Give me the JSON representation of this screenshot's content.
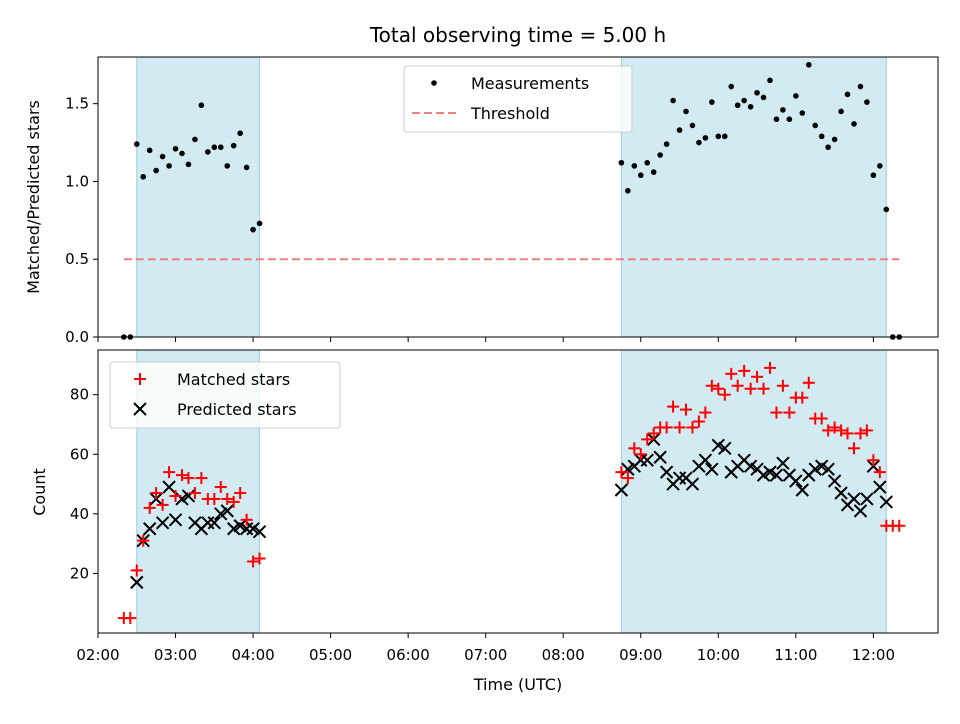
{
  "chart_data": [
    {
      "type": "scatter",
      "title": "Total observing time = 5.00 h",
      "xlabel": "",
      "ylabel": "Matched/Predicted stars",
      "xlim": [
        "02:00",
        "12:50"
      ],
      "ylim": [
        0,
        1.8
      ],
      "yticks": [
        "0.0",
        "0.5",
        "1.0",
        "1.5"
      ],
      "grid": false,
      "legend": "top-center",
      "shaded_intervals": [
        [
          "02:30",
          "04:05"
        ],
        [
          "08:45",
          "12:10"
        ]
      ],
      "series": [
        {
          "name": "Measurements",
          "color": "#000000",
          "marker": "dot",
          "points": [
            [
              "02:20",
              0.0
            ],
            [
              "02:25",
              0.0
            ],
            [
              "02:30",
              1.24
            ],
            [
              "02:35",
              1.03
            ],
            [
              "02:40",
              1.2
            ],
            [
              "02:45",
              1.07
            ],
            [
              "02:50",
              1.16
            ],
            [
              "02:55",
              1.1
            ],
            [
              "03:00",
              1.21
            ],
            [
              "03:05",
              1.18
            ],
            [
              "03:10",
              1.11
            ],
            [
              "03:15",
              1.27
            ],
            [
              "03:20",
              1.49
            ],
            [
              "03:25",
              1.19
            ],
            [
              "03:30",
              1.22
            ],
            [
              "03:35",
              1.22
            ],
            [
              "03:40",
              1.1
            ],
            [
              "03:45",
              1.23
            ],
            [
              "03:50",
              1.31
            ],
            [
              "03:55",
              1.09
            ],
            [
              "04:00",
              0.69
            ],
            [
              "04:05",
              0.73
            ],
            [
              "08:45",
              1.12
            ],
            [
              "08:50",
              0.94
            ],
            [
              "08:55",
              1.1
            ],
            [
              "09:00",
              1.04
            ],
            [
              "09:05",
              1.12
            ],
            [
              "09:10",
              1.06
            ],
            [
              "09:15",
              1.17
            ],
            [
              "09:20",
              1.24
            ],
            [
              "09:25",
              1.52
            ],
            [
              "09:30",
              1.33
            ],
            [
              "09:35",
              1.45
            ],
            [
              "09:40",
              1.36
            ],
            [
              "09:45",
              1.25
            ],
            [
              "09:50",
              1.28
            ],
            [
              "09:55",
              1.51
            ],
            [
              "10:00",
              1.29
            ],
            [
              "10:05",
              1.29
            ],
            [
              "10:10",
              1.61
            ],
            [
              "10:15",
              1.49
            ],
            [
              "10:20",
              1.52
            ],
            [
              "10:25",
              1.48
            ],
            [
              "10:30",
              1.57
            ],
            [
              "10:35",
              1.54
            ],
            [
              "10:40",
              1.65
            ],
            [
              "10:45",
              1.4
            ],
            [
              "10:50",
              1.46
            ],
            [
              "10:55",
              1.4
            ],
            [
              "11:00",
              1.55
            ],
            [
              "11:05",
              1.44
            ],
            [
              "11:10",
              1.75
            ],
            [
              "11:15",
              1.36
            ],
            [
              "11:20",
              1.29
            ],
            [
              "11:25",
              1.22
            ],
            [
              "11:30",
              1.27
            ],
            [
              "11:35",
              1.45
            ],
            [
              "11:40",
              1.56
            ],
            [
              "11:45",
              1.37
            ],
            [
              "11:50",
              1.61
            ],
            [
              "11:55",
              1.51
            ],
            [
              "12:00",
              1.04
            ],
            [
              "12:05",
              1.1
            ],
            [
              "12:10",
              0.82
            ],
            [
              "12:15",
              0.0
            ],
            [
              "12:20",
              0.0
            ]
          ]
        },
        {
          "name": "Threshold",
          "color": "#f08080",
          "style": "dashed",
          "points": [
            [
              "02:20",
              0.5
            ],
            [
              "12:20",
              0.5
            ]
          ]
        }
      ]
    },
    {
      "type": "scatter",
      "title": "",
      "xlabel": "Time (UTC)",
      "ylabel": "Count",
      "xlim": [
        "02:00",
        "12:50"
      ],
      "ylim": [
        0,
        95
      ],
      "yticks": [
        "20",
        "40",
        "60",
        "80"
      ],
      "xticks": [
        "02:00",
        "03:00",
        "04:00",
        "05:00",
        "06:00",
        "07:00",
        "08:00",
        "09:00",
        "10:00",
        "11:00",
        "12:00"
      ],
      "grid": false,
      "legend": "top-left",
      "shaded_intervals": [
        [
          "02:30",
          "04:05"
        ],
        [
          "08:45",
          "12:10"
        ]
      ],
      "series": [
        {
          "name": "Matched stars",
          "color": "#ff0000",
          "marker": "plus",
          "points": [
            [
              "02:20",
              5
            ],
            [
              "02:25",
              5
            ],
            [
              "02:30",
              21
            ],
            [
              "02:35",
              31
            ],
            [
              "02:40",
              42
            ],
            [
              "02:45",
              47
            ],
            [
              "02:50",
              43
            ],
            [
              "02:55",
              54
            ],
            [
              "03:00",
              46
            ],
            [
              "03:05",
              53
            ],
            [
              "03:10",
              52
            ],
            [
              "03:15",
              47
            ],
            [
              "03:20",
              52
            ],
            [
              "03:25",
              45
            ],
            [
              "03:30",
              45
            ],
            [
              "03:35",
              49
            ],
            [
              "03:40",
              45
            ],
            [
              "03:45",
              44
            ],
            [
              "03:50",
              47
            ],
            [
              "03:55",
              38
            ],
            [
              "04:00",
              24
            ],
            [
              "04:05",
              25
            ],
            [
              "08:45",
              54
            ],
            [
              "08:50",
              52
            ],
            [
              "08:55",
              62
            ],
            [
              "09:00",
              60
            ],
            [
              "09:05",
              65
            ],
            [
              "09:10",
              67
            ],
            [
              "09:15",
              69
            ],
            [
              "09:20",
              69
            ],
            [
              "09:25",
              76
            ],
            [
              "09:30",
              69
            ],
            [
              "09:35",
              75
            ],
            [
              "09:40",
              69
            ],
            [
              "09:45",
              71
            ],
            [
              "09:50",
              74
            ],
            [
              "09:55",
              83
            ],
            [
              "10:00",
              82
            ],
            [
              "10:05",
              80
            ],
            [
              "10:10",
              87
            ],
            [
              "10:15",
              83
            ],
            [
              "10:20",
              88
            ],
            [
              "10:25",
              82
            ],
            [
              "10:30",
              86
            ],
            [
              "10:35",
              82
            ],
            [
              "10:40",
              89
            ],
            [
              "10:45",
              74
            ],
            [
              "10:50",
              83
            ],
            [
              "10:55",
              74
            ],
            [
              "11:00",
              79
            ],
            [
              "11:05",
              79
            ],
            [
              "11:10",
              84
            ],
            [
              "11:15",
              72
            ],
            [
              "11:20",
              72
            ],
            [
              "11:25",
              68
            ],
            [
              "11:30",
              69
            ],
            [
              "11:35",
              68
            ],
            [
              "11:40",
              67
            ],
            [
              "11:45",
              62
            ],
            [
              "11:50",
              67
            ],
            [
              "11:55",
              68
            ],
            [
              "12:00",
              58
            ],
            [
              "12:05",
              54
            ],
            [
              "12:10",
              36
            ],
            [
              "12:15",
              36
            ],
            [
              "12:20",
              36
            ]
          ]
        },
        {
          "name": "Predicted stars",
          "color": "#000000",
          "marker": "x",
          "points": [
            [
              "02:30",
              17
            ],
            [
              "02:35",
              31
            ],
            [
              "02:40",
              35
            ],
            [
              "02:45",
              45
            ],
            [
              "02:50",
              37
            ],
            [
              "02:55",
              49
            ],
            [
              "03:00",
              38
            ],
            [
              "03:05",
              45
            ],
            [
              "03:10",
              46
            ],
            [
              "03:15",
              37
            ],
            [
              "03:20",
              35
            ],
            [
              "03:25",
              37
            ],
            [
              "03:30",
              37
            ],
            [
              "03:35",
              40
            ],
            [
              "03:40",
              41
            ],
            [
              "03:45",
              35
            ],
            [
              "03:50",
              36
            ],
            [
              "03:55",
              35
            ],
            [
              "04:00",
              35
            ],
            [
              "04:05",
              34
            ],
            [
              "08:45",
              48
            ],
            [
              "08:50",
              55
            ],
            [
              "08:55",
              56
            ],
            [
              "09:00",
              58
            ],
            [
              "09:05",
              58
            ],
            [
              "09:10",
              65
            ],
            [
              "09:15",
              59
            ],
            [
              "09:20",
              54
            ],
            [
              "09:25",
              50
            ],
            [
              "09:30",
              52
            ],
            [
              "09:35",
              52
            ],
            [
              "09:40",
              50
            ],
            [
              "09:45",
              56
            ],
            [
              "09:50",
              58
            ],
            [
              "09:55",
              55
            ],
            [
              "10:00",
              63
            ],
            [
              "10:05",
              62
            ],
            [
              "10:10",
              54
            ],
            [
              "10:15",
              56
            ],
            [
              "10:20",
              58
            ],
            [
              "10:25",
              56
            ],
            [
              "10:30",
              55
            ],
            [
              "10:35",
              53
            ],
            [
              "10:40",
              54
            ],
            [
              "10:45",
              53
            ],
            [
              "10:50",
              57
            ],
            [
              "10:55",
              53
            ],
            [
              "11:00",
              51
            ],
            [
              "11:05",
              48
            ],
            [
              "11:10",
              53
            ],
            [
              "11:15",
              55
            ],
            [
              "11:20",
              56
            ],
            [
              "11:25",
              55
            ],
            [
              "11:30",
              51
            ],
            [
              "11:35",
              47
            ],
            [
              "11:40",
              43
            ],
            [
              "11:45",
              45
            ],
            [
              "11:50",
              41
            ],
            [
              "11:55",
              45
            ],
            [
              "12:00",
              56
            ],
            [
              "12:05",
              49
            ],
            [
              "12:10",
              44
            ]
          ]
        }
      ]
    }
  ],
  "colors": {
    "shade": "#add8e6",
    "threshold": "#f08080",
    "matched": "#ff0000",
    "predicted": "#000000"
  }
}
